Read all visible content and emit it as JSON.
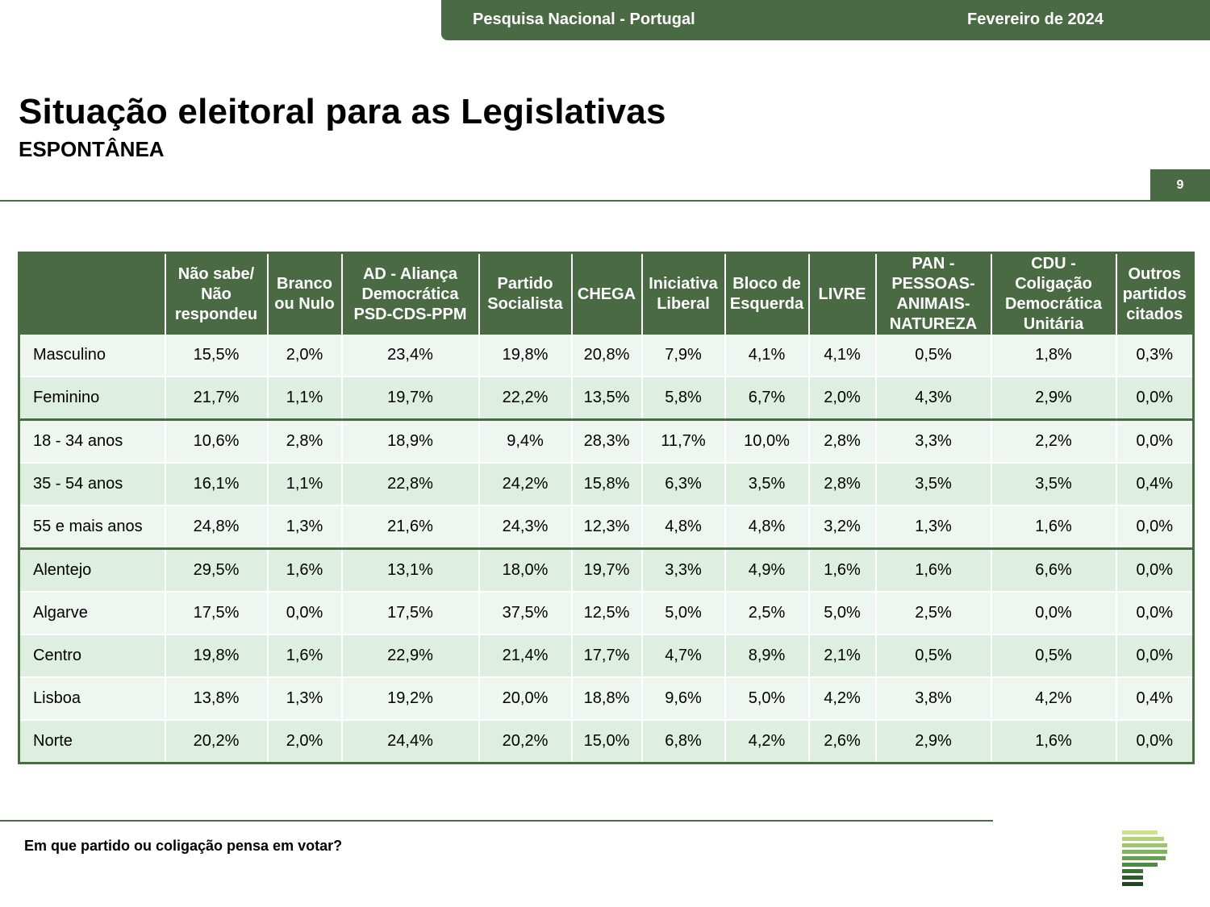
{
  "header": {
    "survey": "Pesquisa Nacional - Portugal",
    "date": "Fevereiro de 2024"
  },
  "title": "Situação eleitoral para as Legislativas",
  "subtitle": "ESPONTÂNEA",
  "page_number": "9",
  "table": {
    "columns": [
      "",
      "Não sabe/ Não respondeu",
      "Branco ou Nulo",
      "AD - Aliança Democrática PSD-CDS-PPM",
      "Partido Socialista",
      "CHEGA",
      "Iniciativa Liberal",
      "Bloco de Esquerda",
      "LIVRE",
      "PAN - PESSOAS-ANIMAIS-NATUREZA",
      "CDU - Coligação Democrática Unitária",
      "Outros partidos citados"
    ],
    "rows": [
      {
        "label": "Masculino",
        "values": [
          "15,5%",
          "2,0%",
          "23,4%",
          "19,8%",
          "20,8%",
          "7,9%",
          "4,1%",
          "4,1%",
          "0,5%",
          "1,8%",
          "0,3%"
        ]
      },
      {
        "label": "Feminino",
        "values": [
          "21,7%",
          "1,1%",
          "19,7%",
          "22,2%",
          "13,5%",
          "5,8%",
          "6,7%",
          "2,0%",
          "4,3%",
          "2,9%",
          "0,0%"
        ]
      },
      {
        "label": "18 - 34 anos",
        "values": [
          "10,6%",
          "2,8%",
          "18,9%",
          "9,4%",
          "28,3%",
          "11,7%",
          "10,0%",
          "2,8%",
          "3,3%",
          "2,2%",
          "0,0%"
        ]
      },
      {
        "label": "35 - 54 anos",
        "values": [
          "16,1%",
          "1,1%",
          "22,8%",
          "24,2%",
          "15,8%",
          "6,3%",
          "3,5%",
          "2,8%",
          "3,5%",
          "3,5%",
          "0,4%"
        ]
      },
      {
        "label": "55 e mais anos",
        "values": [
          "24,8%",
          "1,3%",
          "21,6%",
          "24,3%",
          "12,3%",
          "4,8%",
          "4,8%",
          "3,2%",
          "1,3%",
          "1,6%",
          "0,0%"
        ]
      },
      {
        "label": "Alentejo",
        "values": [
          "29,5%",
          "1,6%",
          "13,1%",
          "18,0%",
          "19,7%",
          "3,3%",
          "4,9%",
          "1,6%",
          "1,6%",
          "6,6%",
          "0,0%"
        ]
      },
      {
        "label": "Algarve",
        "values": [
          "17,5%",
          "0,0%",
          "17,5%",
          "37,5%",
          "12,5%",
          "5,0%",
          "2,5%",
          "5,0%",
          "2,5%",
          "0,0%",
          "0,0%"
        ]
      },
      {
        "label": "Centro",
        "values": [
          "19,8%",
          "1,6%",
          "22,9%",
          "21,4%",
          "17,7%",
          "4,7%",
          "8,9%",
          "2,1%",
          "0,5%",
          "0,5%",
          "0,0%"
        ]
      },
      {
        "label": "Lisboa",
        "values": [
          "13,8%",
          "1,3%",
          "19,2%",
          "20,0%",
          "18,8%",
          "9,6%",
          "5,0%",
          "4,2%",
          "3,8%",
          "4,2%",
          "0,4%"
        ]
      },
      {
        "label": "Norte",
        "values": [
          "20,2%",
          "2,0%",
          "24,4%",
          "20,2%",
          "15,0%",
          "6,8%",
          "4,2%",
          "2,6%",
          "2,9%",
          "1,6%",
          "0,0%"
        ]
      }
    ]
  },
  "footer": {
    "question": "Em que partido ou coligação pensa em votar?"
  },
  "colors": {
    "brand_green": "#4a6a44",
    "row_light": "#eef6ef",
    "row_mid": "#deeee1"
  },
  "logo_icon": "stacked-bars-logo-icon"
}
